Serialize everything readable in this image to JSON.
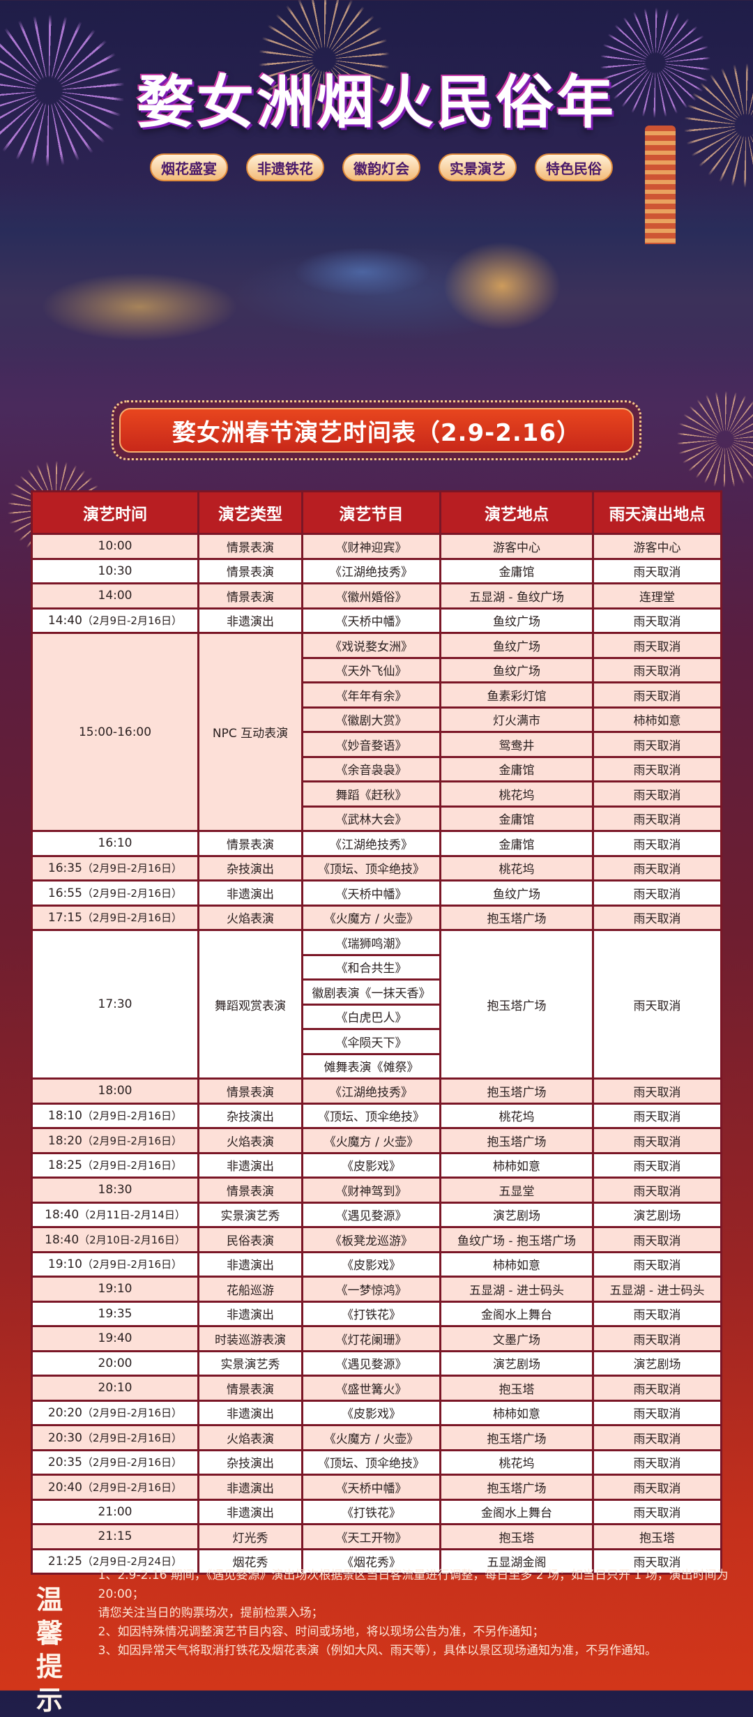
{
  "header": {
    "title": "婺女洲烟火民俗年",
    "tags": [
      "烟花盛宴",
      "非遗铁花",
      "徽韵灯会",
      "实景演艺",
      "特色民俗"
    ],
    "subtitle": "婺女洲春节演艺时间表（2.9-2.16）"
  },
  "colors": {
    "header_cell": "#b81e22",
    "row_pink": "#fde0d8",
    "row_white": "#ffffff",
    "grid": "#7a1626",
    "page_bottom": "#d2361a"
  },
  "table": {
    "columns": [
      "演艺时间",
      "演艺类型",
      "演艺节目",
      "演艺地点",
      "雨天演出地点"
    ],
    "rows": [
      {
        "time": "10:00",
        "type": "情景表演",
        "items": [
          [
            "《财神迎宾》",
            "游客中心",
            "游客中心"
          ]
        ]
      },
      {
        "time": "10:30",
        "type": "情景表演",
        "items": [
          [
            "《江湖绝技秀》",
            "金庸馆",
            "雨天取消"
          ]
        ]
      },
      {
        "time": "14:00",
        "type": "情景表演",
        "items": [
          [
            "《徽州婚俗》",
            "五显湖 - 鱼纹广场",
            "连理堂"
          ]
        ]
      },
      {
        "time": "14:40",
        "range": "（2月9日-2月16日）",
        "type": "非遗演出",
        "items": [
          [
            "《天桥中幡》",
            "鱼纹广场",
            "雨天取消"
          ]
        ]
      },
      {
        "time": "15:00-16:00",
        "type": "NPC 互动表演",
        "items": [
          [
            "《戏说婺女洲》",
            "鱼纹广场",
            "雨天取消"
          ],
          [
            "《天外飞仙》",
            "鱼纹广场",
            "雨天取消"
          ],
          [
            "《年年有余》",
            "鱼素彩灯馆",
            "雨天取消"
          ],
          [
            "《徽剧大赏》",
            "灯火满市",
            "柿柿如意"
          ],
          [
            "《妙音婺语》",
            "鸳鸯井",
            "雨天取消"
          ],
          [
            "《余音袅袅》",
            "金庸馆",
            "雨天取消"
          ],
          [
            "舞蹈《赶秋》",
            "桃花坞",
            "雨天取消"
          ],
          [
            "《武林大会》",
            "金庸馆",
            "雨天取消"
          ]
        ]
      },
      {
        "time": "16:10",
        "type": "情景表演",
        "items": [
          [
            "《江湖绝技秀》",
            "金庸馆",
            "雨天取消"
          ]
        ]
      },
      {
        "time": "16:35",
        "range": "（2月9日-2月16日）",
        "type": "杂技演出",
        "items": [
          [
            "《顶坛、顶伞绝技》",
            "桃花坞",
            "雨天取消"
          ]
        ]
      },
      {
        "time": "16:55",
        "range": "（2月9日-2月16日）",
        "type": "非遗演出",
        "items": [
          [
            "《天桥中幡》",
            "鱼纹广场",
            "雨天取消"
          ]
        ]
      },
      {
        "time": "17:15",
        "range": "（2月9日-2月16日）",
        "type": "火焰表演",
        "items": [
          [
            "《火魔方 / 火壶》",
            "抱玉塔广场",
            "雨天取消"
          ]
        ]
      },
      {
        "time": "17:30",
        "type": "舞蹈观赏表演",
        "location": "抱玉塔广场",
        "rain": "雨天取消",
        "programs": [
          "《瑞狮鸣潮》",
          "《和合共生》",
          "徽剧表演《一抹天香》",
          "《白虎巴人》",
          "《伞陨天下》",
          "傩舞表演《傩祭》"
        ]
      },
      {
        "time": "18:00",
        "type": "情景表演",
        "items": [
          [
            "《江湖绝技秀》",
            "抱玉塔广场",
            "雨天取消"
          ]
        ]
      },
      {
        "time": "18:10",
        "range": "（2月9日-2月16日）",
        "type": "杂技演出",
        "items": [
          [
            "《顶坛、顶伞绝技》",
            "桃花坞",
            "雨天取消"
          ]
        ]
      },
      {
        "time": "18:20",
        "range": "（2月9日-2月16日）",
        "type": "火焰表演",
        "items": [
          [
            "《火魔方 / 火壶》",
            "抱玉塔广场",
            "雨天取消"
          ]
        ]
      },
      {
        "time": "18:25",
        "range": "（2月9日-2月16日）",
        "type": "非遗演出",
        "items": [
          [
            "《皮影戏》",
            "柿柿如意",
            "雨天取消"
          ]
        ]
      },
      {
        "time": "18:30",
        "type": "情景表演",
        "items": [
          [
            "《财神驾到》",
            "五显堂",
            "雨天取消"
          ]
        ]
      },
      {
        "time": "18:40",
        "range": "（2月11日-2月14日）",
        "type": "实景演艺秀",
        "items": [
          [
            "《遇见婺源》",
            "演艺剧场",
            "演艺剧场"
          ]
        ]
      },
      {
        "time": "18:40",
        "range": "（2月10日-2月16日）",
        "type": "民俗表演",
        "items": [
          [
            "《板凳龙巡游》",
            "鱼纹广场 - 抱玉塔广场",
            "雨天取消"
          ]
        ]
      },
      {
        "time": "19:10",
        "range": "（2月9日-2月16日）",
        "type": "非遗演出",
        "items": [
          [
            "《皮影戏》",
            "柿柿如意",
            "雨天取消"
          ]
        ]
      },
      {
        "time": "19:10",
        "type": "花船巡游",
        "items": [
          [
            "《一梦惊鸿》",
            "五显湖 - 进士码头",
            "五显湖 - 进士码头"
          ]
        ]
      },
      {
        "time": "19:35",
        "type": "非遗演出",
        "items": [
          [
            "《打铁花》",
            "金阁水上舞台",
            "雨天取消"
          ]
        ]
      },
      {
        "time": "19:40",
        "type": "时装巡游表演",
        "items": [
          [
            "《灯花阑珊》",
            "文墨广场",
            "雨天取消"
          ]
        ]
      },
      {
        "time": "20:00",
        "type": "实景演艺秀",
        "items": [
          [
            "《遇见婺源》",
            "演艺剧场",
            "演艺剧场"
          ]
        ]
      },
      {
        "time": "20:10",
        "type": "情景表演",
        "items": [
          [
            "《盛世篝火》",
            "抱玉塔",
            "雨天取消"
          ]
        ]
      },
      {
        "time": "20:20",
        "range": "（2月9日-2月16日）",
        "type": "非遗演出",
        "items": [
          [
            "《皮影戏》",
            "柿柿如意",
            "雨天取消"
          ]
        ]
      },
      {
        "time": "20:30",
        "range": "（2月9日-2月16日）",
        "type": "火焰表演",
        "items": [
          [
            "《火魔方 / 火壶》",
            "抱玉塔广场",
            "雨天取消"
          ]
        ]
      },
      {
        "time": "20:35",
        "range": "（2月9日-2月16日）",
        "type": "杂技演出",
        "items": [
          [
            "《顶坛、顶伞绝技》",
            "桃花坞",
            "雨天取消"
          ]
        ]
      },
      {
        "time": "20:40",
        "range": "（2月9日-2月16日）",
        "type": "非遗演出",
        "items": [
          [
            "《天桥中幡》",
            "抱玉塔广场",
            "雨天取消"
          ]
        ]
      },
      {
        "time": "21:00",
        "type": "非遗演出",
        "items": [
          [
            "《打铁花》",
            "金阁水上舞台",
            "雨天取消"
          ]
        ]
      },
      {
        "time": "21:15",
        "type": "灯光秀",
        "items": [
          [
            "《天工开物》",
            "抱玉塔",
            "抱玉塔"
          ]
        ]
      },
      {
        "time": "21:25",
        "range": "（2月9日-2月24日）",
        "type": "烟花秀",
        "items": [
          [
            "《烟花秀》",
            "五显湖金阁",
            "雨天取消"
          ]
        ]
      }
    ]
  },
  "notes": {
    "label": "温馨提示",
    "lines": [
      "1、2.9-2.16 期间，《遇见婺源》演出场次根据景区当日客流量进行调整，每日至多 2 场；如当日只开 1 场，演出时间为 20:00；",
      "请您关注当日的购票场次，提前检票入场；",
      "2、如因特殊情况调整演艺节目内容、时间或场地，将以现场公告为准，不另作通知；",
      "3、如因异常天气将取消打铁花及烟花表演（例如大风、雨天等），具体以景区现场通知为准，不另作通知。"
    ]
  }
}
